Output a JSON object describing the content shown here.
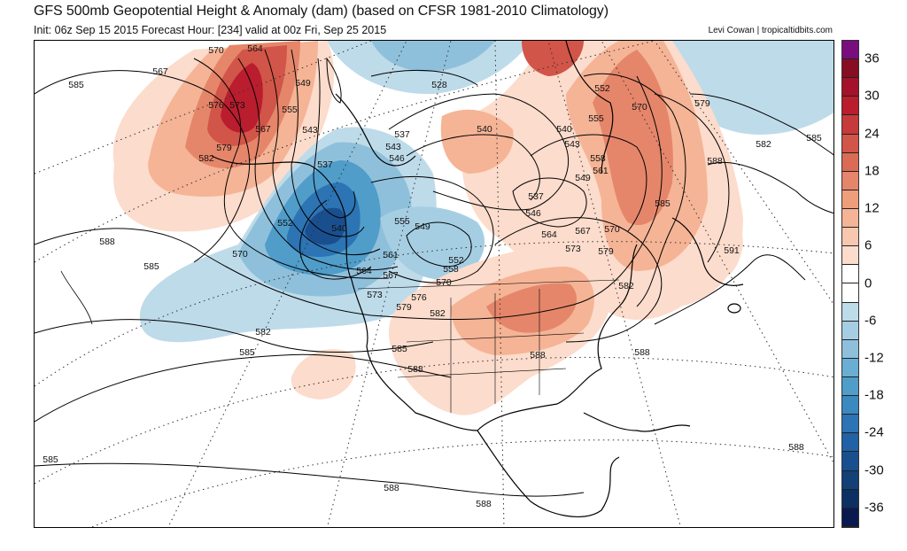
{
  "header": {
    "title": "GFS 500mb Geopotential Height & Anomaly (dam) (based on CFSR 1981-2010 Climatology)",
    "subtitle": "Init: 06z Sep 15 2015   Forecast Hour: [234]   valid at 00z Fri, Sep 25 2015",
    "credit": "Levi Cowan | tropicaltidbits.com"
  },
  "colorbar": {
    "labels": [
      "36",
      "30",
      "24",
      "18",
      "12",
      "6",
      "0",
      "-6",
      "-12",
      "-18",
      "-24",
      "-30",
      "-36"
    ],
    "colors": [
      "#7a0d7e",
      "#870d25",
      "#a3122a",
      "#b91d2e",
      "#c63a3c",
      "#d15548",
      "#db6b55",
      "#e5866a",
      "#ef9e7b",
      "#f5b496",
      "#f8c7b0",
      "#fcdccc",
      "#ffffff",
      "#ffffff",
      "#bedbea",
      "#a6cee3",
      "#8fc0db",
      "#6aaed3",
      "#509dca",
      "#3b89bf",
      "#2c74b3",
      "#2161a5",
      "#1a4f8f",
      "#124077",
      "#0c3062",
      "#0a1a4f"
    ]
  },
  "map": {
    "contour_labels": [
      "585",
      "567",
      "570",
      "564",
      "576",
      "573",
      "567",
      "555",
      "549",
      "543",
      "582",
      "579",
      "537",
      "552",
      "540",
      "570",
      "588",
      "585",
      "582",
      "585",
      "564",
      "561",
      "567",
      "573",
      "576",
      "579",
      "570",
      "558",
      "552",
      "549",
      "555",
      "537",
      "543",
      "546",
      "528",
      "540",
      "540",
      "543",
      "537",
      "546",
      "549",
      "558",
      "561",
      "564",
      "567",
      "570",
      "573",
      "579",
      "582",
      "582",
      "585",
      "588",
      "588",
      "588",
      "555",
      "552",
      "570",
      "579",
      "588",
      "585",
      "582",
      "585",
      "591",
      "585",
      "588",
      "588",
      "588"
    ]
  }
}
